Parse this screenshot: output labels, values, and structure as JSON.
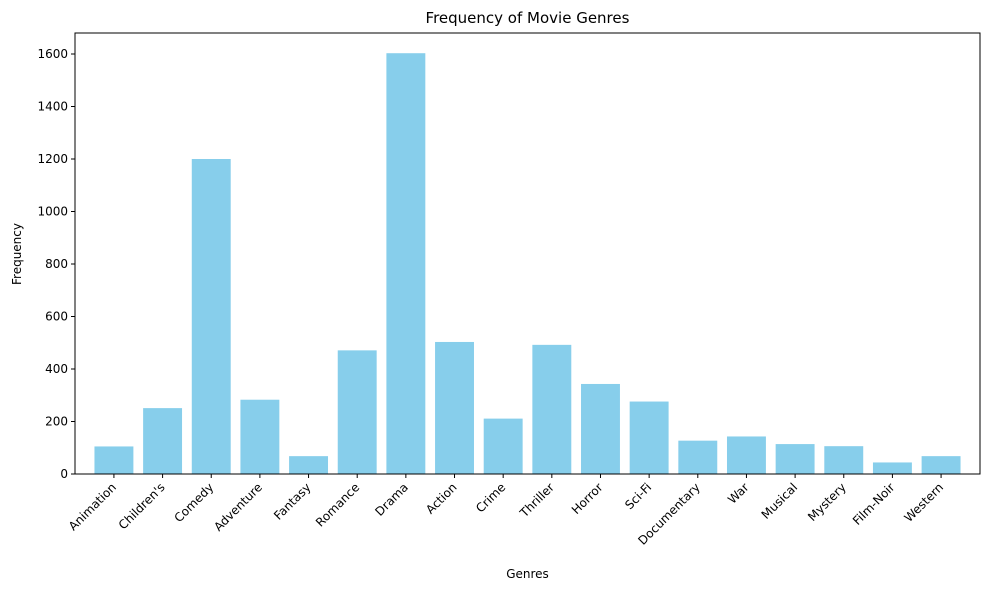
{
  "chart_data": {
    "type": "bar",
    "title": "Frequency of Movie Genres",
    "xlabel": "Genres",
    "ylabel": "Frequency",
    "categories": [
      "Animation",
      "Children's",
      "Comedy",
      "Adventure",
      "Fantasy",
      "Romance",
      "Drama",
      "Action",
      "Crime",
      "Thriller",
      "Horror",
      "Sci-Fi",
      "Documentary",
      "War",
      "Musical",
      "Mystery",
      "Film-Noir",
      "Western"
    ],
    "values": [
      105,
      251,
      1200,
      283,
      68,
      471,
      1603,
      503,
      211,
      492,
      343,
      276,
      127,
      143,
      114,
      106,
      44,
      68
    ],
    "ylim": [
      0,
      1680
    ],
    "yticks": [
      0,
      200,
      400,
      600,
      800,
      1000,
      1200,
      1400,
      1600
    ],
    "bar_color": "#87CEEB",
    "grid": false,
    "legend": "none"
  }
}
